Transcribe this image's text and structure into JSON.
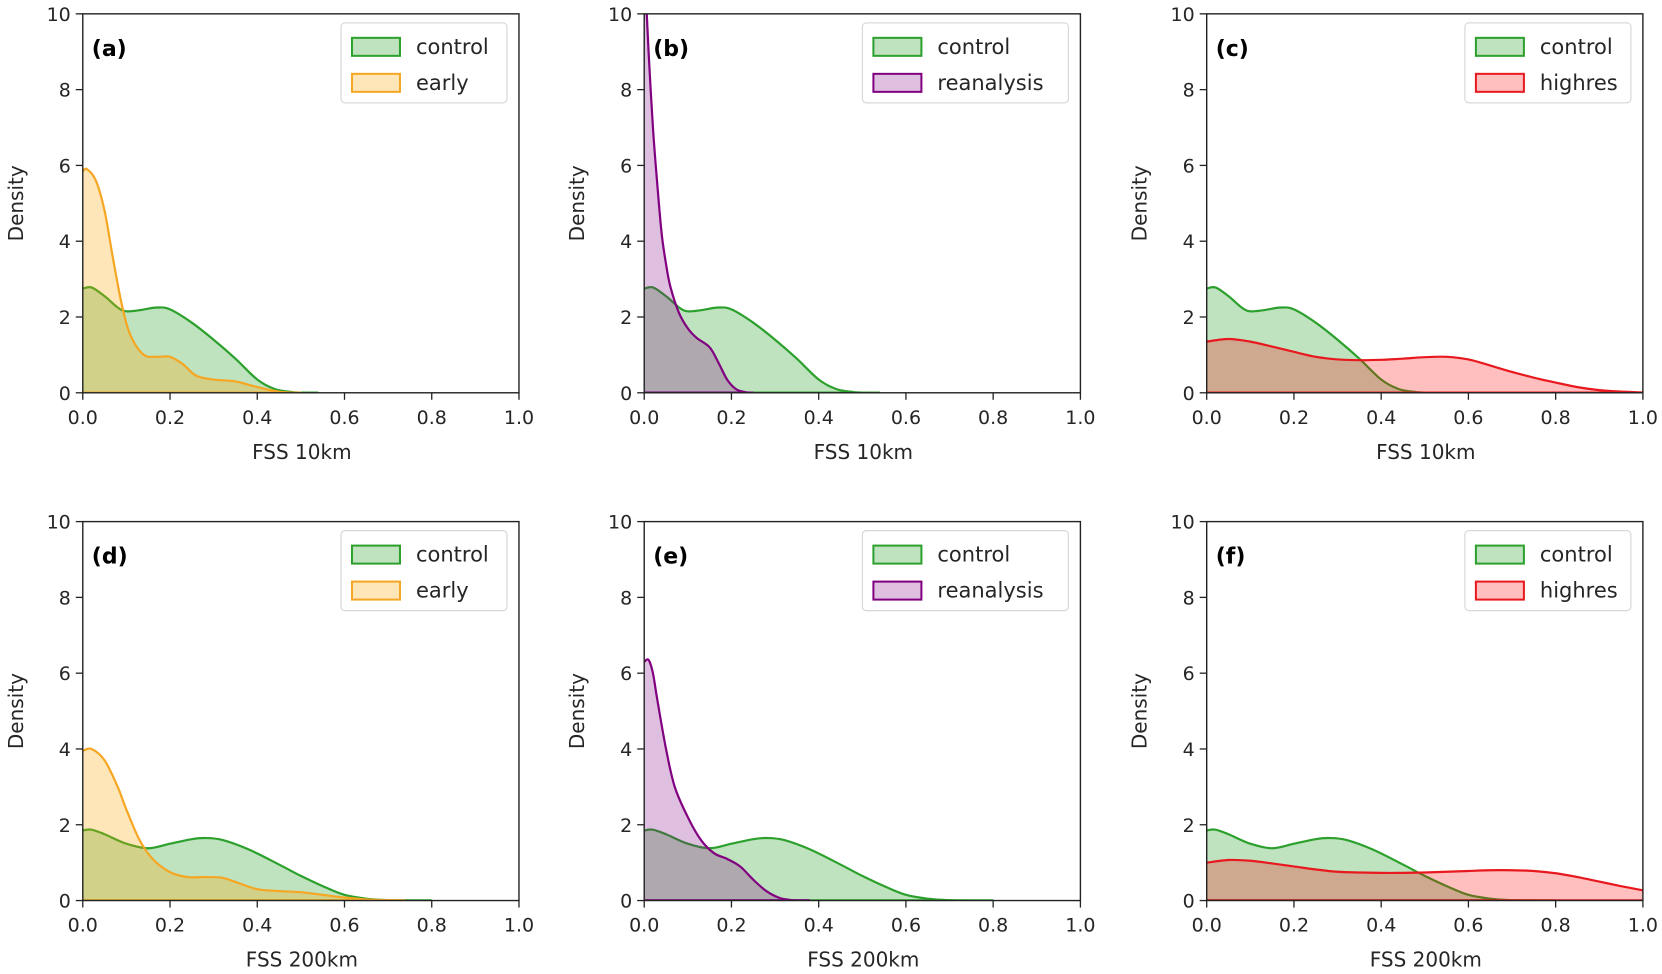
{
  "figure": {
    "domain": "Chart",
    "panels_count": 6
  },
  "colors": {
    "control": "#2ca02c",
    "early": "#f5a623",
    "reanalysis": "#800080",
    "highres": "#e8191e"
  },
  "chart_data": [
    {
      "type": "area",
      "panel": "(a)",
      "xlabel": "FSS 10km",
      "ylabel": "Density",
      "xlim": [
        0.0,
        1.0
      ],
      "ylim": [
        0,
        10
      ],
      "xticks": [
        "0.0",
        "0.2",
        "0.4",
        "0.6",
        "0.8",
        "1.0"
      ],
      "yticks": [
        "0",
        "2",
        "4",
        "6",
        "8",
        "10"
      ],
      "legend": {
        "placement": "top-right",
        "entries": [
          "control",
          "early"
        ]
      },
      "series": [
        {
          "name": "control",
          "color_key": "control",
          "x": [
            0.0,
            0.02,
            0.05,
            0.08,
            0.1,
            0.13,
            0.17,
            0.2,
            0.25,
            0.3,
            0.35,
            0.4,
            0.44,
            0.48,
            0.52,
            0.54
          ],
          "y": [
            2.75,
            2.78,
            2.55,
            2.25,
            2.15,
            2.18,
            2.25,
            2.2,
            1.85,
            1.4,
            0.9,
            0.35,
            0.1,
            0.02,
            0.0,
            0.0
          ]
        },
        {
          "name": "early",
          "color_key": "early",
          "x": [
            0.0,
            0.01,
            0.03,
            0.05,
            0.07,
            0.09,
            0.11,
            0.14,
            0.17,
            0.2,
            0.23,
            0.26,
            0.3,
            0.35,
            0.4,
            0.45,
            0.5
          ],
          "y": [
            5.85,
            5.9,
            5.6,
            4.8,
            3.5,
            2.3,
            1.5,
            1.0,
            0.95,
            0.95,
            0.75,
            0.45,
            0.35,
            0.3,
            0.15,
            0.03,
            0.0
          ]
        }
      ]
    },
    {
      "type": "area",
      "panel": "(b)",
      "xlabel": "FSS 10km",
      "ylabel": "Density",
      "xlim": [
        0.0,
        1.0
      ],
      "ylim": [
        0,
        10
      ],
      "xticks": [
        "0.0",
        "0.2",
        "0.4",
        "0.6",
        "0.8",
        "1.0"
      ],
      "yticks": [
        "0",
        "2",
        "4",
        "6",
        "8",
        "10"
      ],
      "legend": {
        "placement": "top-right",
        "entries": [
          "control",
          "reanalysis"
        ]
      },
      "series": [
        {
          "name": "control",
          "color_key": "control",
          "x": [
            0.0,
            0.02,
            0.05,
            0.08,
            0.1,
            0.13,
            0.17,
            0.2,
            0.25,
            0.3,
            0.35,
            0.4,
            0.44,
            0.48,
            0.52,
            0.54
          ],
          "y": [
            2.75,
            2.78,
            2.55,
            2.25,
            2.15,
            2.18,
            2.25,
            2.2,
            1.85,
            1.4,
            0.9,
            0.35,
            0.1,
            0.02,
            0.0,
            0.0
          ]
        },
        {
          "name": "reanalysis",
          "color_key": "reanalysis",
          "x": [
            0.0,
            0.005,
            0.01,
            0.02,
            0.03,
            0.04,
            0.05,
            0.06,
            0.08,
            0.1,
            0.12,
            0.15,
            0.17,
            0.19,
            0.21,
            0.23,
            0.25
          ],
          "y": [
            11.0,
            10.2,
            9.0,
            7.0,
            5.5,
            4.2,
            3.4,
            2.8,
            2.1,
            1.7,
            1.45,
            1.2,
            0.8,
            0.35,
            0.1,
            0.02,
            0.0
          ]
        }
      ]
    },
    {
      "type": "area",
      "panel": "(c)",
      "xlabel": "FSS 10km",
      "ylabel": "Density",
      "xlim": [
        0.0,
        1.0
      ],
      "ylim": [
        0,
        10
      ],
      "xticks": [
        "0.0",
        "0.2",
        "0.4",
        "0.6",
        "0.8",
        "1.0"
      ],
      "yticks": [
        "0",
        "2",
        "4",
        "6",
        "8",
        "10"
      ],
      "legend": {
        "placement": "top-right",
        "entries": [
          "control",
          "highres"
        ]
      },
      "series": [
        {
          "name": "control",
          "color_key": "control",
          "x": [
            0.0,
            0.02,
            0.05,
            0.08,
            0.1,
            0.13,
            0.17,
            0.2,
            0.25,
            0.3,
            0.35,
            0.4,
            0.44,
            0.48,
            0.52,
            0.54
          ],
          "y": [
            2.75,
            2.78,
            2.55,
            2.25,
            2.15,
            2.18,
            2.25,
            2.2,
            1.85,
            1.4,
            0.9,
            0.35,
            0.1,
            0.02,
            0.0,
            0.0
          ]
        },
        {
          "name": "highres",
          "color_key": "highres",
          "x": [
            0.0,
            0.05,
            0.1,
            0.15,
            0.2,
            0.25,
            0.3,
            0.35,
            0.4,
            0.45,
            0.5,
            0.55,
            0.6,
            0.65,
            0.7,
            0.75,
            0.8,
            0.85,
            0.9,
            0.95,
            1.0
          ],
          "y": [
            1.35,
            1.42,
            1.35,
            1.22,
            1.08,
            0.95,
            0.88,
            0.86,
            0.87,
            0.9,
            0.94,
            0.95,
            0.88,
            0.72,
            0.55,
            0.4,
            0.27,
            0.15,
            0.07,
            0.03,
            0.01
          ]
        }
      ]
    },
    {
      "type": "area",
      "panel": "(d)",
      "xlabel": "FSS 200km",
      "ylabel": "Density",
      "xlim": [
        0.0,
        1.0
      ],
      "ylim": [
        0,
        10
      ],
      "xticks": [
        "0.0",
        "0.2",
        "0.4",
        "0.6",
        "0.8",
        "1.0"
      ],
      "yticks": [
        "0",
        "2",
        "4",
        "6",
        "8",
        "10"
      ],
      "legend": {
        "placement": "top-right",
        "entries": [
          "control",
          "early"
        ]
      },
      "series": [
        {
          "name": "control",
          "color_key": "control",
          "x": [
            0.0,
            0.02,
            0.05,
            0.1,
            0.15,
            0.2,
            0.25,
            0.28,
            0.32,
            0.38,
            0.45,
            0.5,
            0.55,
            0.6,
            0.65,
            0.7,
            0.75,
            0.8
          ],
          "y": [
            1.85,
            1.87,
            1.75,
            1.5,
            1.38,
            1.5,
            1.62,
            1.65,
            1.6,
            1.35,
            0.95,
            0.65,
            0.38,
            0.15,
            0.05,
            0.01,
            0.0,
            0.0
          ]
        },
        {
          "name": "early",
          "color_key": "early",
          "x": [
            0.0,
            0.02,
            0.05,
            0.08,
            0.1,
            0.13,
            0.16,
            0.2,
            0.24,
            0.28,
            0.32,
            0.36,
            0.4,
            0.45,
            0.5,
            0.55,
            0.6,
            0.65,
            0.7,
            0.74
          ],
          "y": [
            3.95,
            4.0,
            3.7,
            3.0,
            2.4,
            1.6,
            1.1,
            0.75,
            0.62,
            0.62,
            0.6,
            0.45,
            0.3,
            0.25,
            0.22,
            0.15,
            0.08,
            0.03,
            0.01,
            0.0
          ]
        }
      ]
    },
    {
      "type": "area",
      "panel": "(e)",
      "xlabel": "FSS 200km",
      "ylabel": "Density",
      "xlim": [
        0.0,
        1.0
      ],
      "ylim": [
        0,
        10
      ],
      "xticks": [
        "0.0",
        "0.2",
        "0.4",
        "0.6",
        "0.8",
        "1.0"
      ],
      "yticks": [
        "0",
        "2",
        "4",
        "6",
        "8",
        "10"
      ],
      "legend": {
        "placement": "top-right",
        "entries": [
          "control",
          "reanalysis"
        ]
      },
      "series": [
        {
          "name": "control",
          "color_key": "control",
          "x": [
            0.0,
            0.02,
            0.05,
            0.1,
            0.15,
            0.2,
            0.25,
            0.28,
            0.32,
            0.38,
            0.45,
            0.5,
            0.55,
            0.6,
            0.65,
            0.7,
            0.75,
            0.8
          ],
          "y": [
            1.85,
            1.87,
            1.75,
            1.5,
            1.38,
            1.5,
            1.62,
            1.65,
            1.6,
            1.35,
            0.95,
            0.65,
            0.38,
            0.15,
            0.05,
            0.01,
            0.0,
            0.0
          ]
        },
        {
          "name": "reanalysis",
          "color_key": "reanalysis",
          "x": [
            0.0,
            0.01,
            0.02,
            0.03,
            0.05,
            0.07,
            0.1,
            0.13,
            0.16,
            0.19,
            0.22,
            0.25,
            0.28,
            0.31,
            0.34,
            0.38
          ],
          "y": [
            6.3,
            6.35,
            6.0,
            5.3,
            4.0,
            3.0,
            2.2,
            1.6,
            1.25,
            1.1,
            0.9,
            0.55,
            0.25,
            0.07,
            0.01,
            0.0
          ]
        }
      ]
    },
    {
      "type": "area",
      "panel": "(f)",
      "xlabel": "FSS 200km",
      "ylabel": "Density",
      "xlim": [
        0.0,
        1.0
      ],
      "ylim": [
        0,
        10
      ],
      "xticks": [
        "0.0",
        "0.2",
        "0.4",
        "0.6",
        "0.8",
        "1.0"
      ],
      "yticks": [
        "0",
        "2",
        "4",
        "6",
        "8",
        "10"
      ],
      "legend": {
        "placement": "top-right",
        "entries": [
          "control",
          "highres"
        ]
      },
      "series": [
        {
          "name": "control",
          "color_key": "control",
          "x": [
            0.0,
            0.02,
            0.05,
            0.1,
            0.15,
            0.2,
            0.25,
            0.28,
            0.32,
            0.38,
            0.45,
            0.5,
            0.55,
            0.6,
            0.65,
            0.7,
            0.75,
            0.8
          ],
          "y": [
            1.85,
            1.87,
            1.75,
            1.5,
            1.38,
            1.5,
            1.62,
            1.65,
            1.6,
            1.35,
            0.95,
            0.65,
            0.38,
            0.15,
            0.05,
            0.01,
            0.0,
            0.0
          ]
        },
        {
          "name": "highres",
          "color_key": "highres",
          "x": [
            0.0,
            0.05,
            0.1,
            0.15,
            0.2,
            0.25,
            0.3,
            0.35,
            0.4,
            0.45,
            0.5,
            0.55,
            0.6,
            0.65,
            0.7,
            0.75,
            0.8,
            0.85,
            0.9,
            0.95,
            1.0
          ],
          "y": [
            1.0,
            1.07,
            1.05,
            0.98,
            0.9,
            0.82,
            0.76,
            0.74,
            0.73,
            0.73,
            0.74,
            0.76,
            0.78,
            0.8,
            0.8,
            0.78,
            0.72,
            0.62,
            0.5,
            0.38,
            0.27
          ]
        }
      ]
    }
  ]
}
